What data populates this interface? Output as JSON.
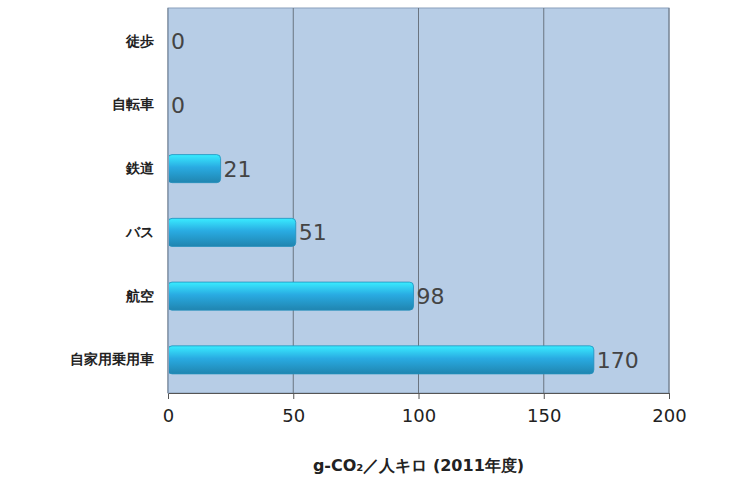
{
  "chart_data": {
    "type": "bar",
    "orientation": "horizontal",
    "categories": [
      "徒歩",
      "自転車",
      "鉄道",
      "バス",
      "航空",
      "自家用乗用車"
    ],
    "values": [
      0,
      0,
      21,
      51,
      98,
      170
    ],
    "color": "#29abe2",
    "x_label": "g-CO₂／人キロ (2011年度)",
    "xlim": [
      0,
      200
    ],
    "xticks": [
      0,
      50,
      100,
      150,
      200
    ],
    "grid": true,
    "data_labels": true
  }
}
